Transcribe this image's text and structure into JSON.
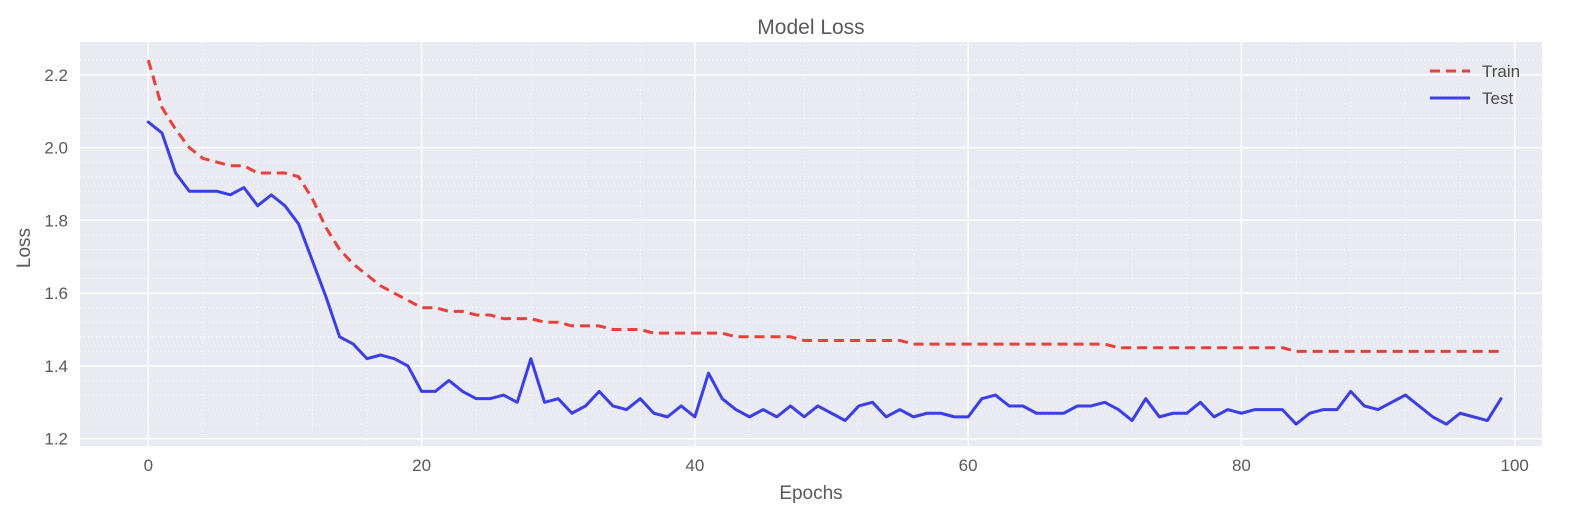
{
  "chart_data": {
    "type": "line",
    "title": "Model Loss",
    "xlabel": "Epochs",
    "ylabel": "Loss",
    "xlim": [
      -5,
      102
    ],
    "ylim": [
      1.18,
      2.29
    ],
    "xticks": [
      0,
      20,
      40,
      60,
      80,
      100
    ],
    "yticks": [
      1.2,
      1.4,
      1.6,
      1.8,
      2.0,
      2.2
    ],
    "xtick_labels": [
      "0",
      "20",
      "40",
      "60",
      "80",
      "100"
    ],
    "ytick_labels": [
      "1.2",
      "1.4",
      "1.6",
      "1.8",
      "2.0",
      "2.2"
    ],
    "grid": true,
    "background": "#eaeaf2",
    "legend_position": "top-right",
    "series": [
      {
        "name": "Train",
        "color": "#e8413c",
        "linestyle": "dashed",
        "values": [
          2.24,
          2.11,
          2.05,
          2.0,
          1.97,
          1.96,
          1.95,
          1.95,
          1.93,
          1.93,
          1.93,
          1.92,
          1.86,
          1.78,
          1.72,
          1.68,
          1.65,
          1.62,
          1.6,
          1.58,
          1.56,
          1.56,
          1.55,
          1.55,
          1.54,
          1.54,
          1.53,
          1.53,
          1.53,
          1.52,
          1.52,
          1.51,
          1.51,
          1.51,
          1.5,
          1.5,
          1.5,
          1.49,
          1.49,
          1.49,
          1.49,
          1.49,
          1.49,
          1.48,
          1.48,
          1.48,
          1.48,
          1.48,
          1.47,
          1.47,
          1.47,
          1.47,
          1.47,
          1.47,
          1.47,
          1.47,
          1.46,
          1.46,
          1.46,
          1.46,
          1.46,
          1.46,
          1.46,
          1.46,
          1.46,
          1.46,
          1.46,
          1.46,
          1.46,
          1.46,
          1.46,
          1.45,
          1.45,
          1.45,
          1.45,
          1.45,
          1.45,
          1.45,
          1.45,
          1.45,
          1.45,
          1.45,
          1.45,
          1.45,
          1.44,
          1.44,
          1.44,
          1.44,
          1.44,
          1.44,
          1.44,
          1.44,
          1.44,
          1.44,
          1.44,
          1.44,
          1.44,
          1.44,
          1.44,
          1.44
        ]
      },
      {
        "name": "Test",
        "color": "#3a3fe8",
        "linestyle": "solid",
        "values": [
          2.07,
          2.04,
          1.93,
          1.88,
          1.88,
          1.88,
          1.87,
          1.89,
          1.84,
          1.87,
          1.84,
          1.79,
          1.69,
          1.59,
          1.48,
          1.46,
          1.42,
          1.43,
          1.42,
          1.4,
          1.33,
          1.33,
          1.36,
          1.33,
          1.31,
          1.31,
          1.32,
          1.3,
          1.42,
          1.3,
          1.31,
          1.27,
          1.29,
          1.33,
          1.29,
          1.28,
          1.31,
          1.27,
          1.26,
          1.29,
          1.26,
          1.38,
          1.31,
          1.28,
          1.26,
          1.28,
          1.26,
          1.29,
          1.26,
          1.29,
          1.27,
          1.25,
          1.29,
          1.3,
          1.26,
          1.28,
          1.26,
          1.27,
          1.27,
          1.26,
          1.26,
          1.31,
          1.32,
          1.29,
          1.29,
          1.27,
          1.27,
          1.27,
          1.29,
          1.29,
          1.3,
          1.28,
          1.25,
          1.31,
          1.26,
          1.27,
          1.27,
          1.3,
          1.26,
          1.28,
          1.27,
          1.28,
          1.28,
          1.28,
          1.24,
          1.27,
          1.28,
          1.28,
          1.33,
          1.29,
          1.28,
          1.3,
          1.32,
          1.29,
          1.26,
          1.24,
          1.27,
          1.26,
          1.25,
          1.31
        ]
      }
    ]
  }
}
